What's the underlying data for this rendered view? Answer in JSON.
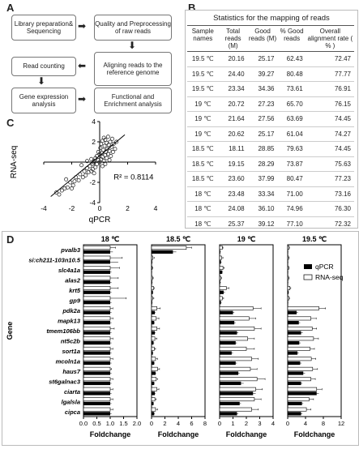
{
  "panels": {
    "a": "A",
    "b": "B",
    "c": "C",
    "d": "D"
  },
  "flow": {
    "library": "Library preparation& Sequencing",
    "quality": "Quality and Preprocessing of raw reads",
    "aligning": "Aligning reads to the reference genome",
    "counting": "Read counting",
    "expression": "Gene expression analysis",
    "functional": "Functional and Enrichment analysis"
  },
  "table": {
    "title": "Statistics for the mapping of reads",
    "headers": [
      "Sample names",
      "Total reads (M)",
      "Good reads (M)",
      "% Good reads",
      "Overall alignment rate ( % )"
    ],
    "rows": [
      [
        "19.5 ℃",
        "20.16",
        "25.17",
        "62.43",
        "72.47"
      ],
      [
        "19.5 ℃",
        "24.40",
        "39.27",
        "80.48",
        "77.77"
      ],
      [
        "19.5 ℃",
        "23.34",
        "34.36",
        "73.61",
        "76.91"
      ],
      [
        "19 ℃",
        "20.72",
        "27.23",
        "65.70",
        "76.15"
      ],
      [
        "19 ℃",
        "21.64",
        "27.56",
        "63.69",
        "74.45"
      ],
      [
        "19 ℃",
        "20.62",
        "25.17",
        "61.04",
        "74.27"
      ],
      [
        "18.5 ℃",
        "18.11",
        "28.85",
        "79.63",
        "74.45"
      ],
      [
        "18.5 ℃",
        "19.15",
        "28.29",
        "73.87",
        "75.63"
      ],
      [
        "18.5 ℃",
        "23.60",
        "37.99",
        "80.47",
        "77.23"
      ],
      [
        "18 ℃",
        "23.48",
        "33.34",
        "71.00",
        "73.16"
      ],
      [
        "18 ℃",
        "24.08",
        "36.10",
        "74.96",
        "76.30"
      ],
      [
        "18 ℃",
        "25.37",
        "39.12",
        "77.10",
        "72.32"
      ]
    ]
  },
  "chart_data": [
    {
      "type": "scatter",
      "xlabel": "qPCR",
      "ylabel": "RNA-seq",
      "annotation": "R² = 0.8114",
      "xlim": [
        -4,
        4
      ],
      "ylim": [
        -4,
        4
      ],
      "xticks": [
        "-4",
        "-2",
        "0",
        "2",
        "4"
      ],
      "yticks": [
        "-4",
        "-2",
        "0",
        "2",
        "4"
      ],
      "points": [
        [
          -3.1,
          -3.0
        ],
        [
          -2.9,
          -3.2
        ],
        [
          -2.7,
          -2.8
        ],
        [
          -2.5,
          -2.6
        ],
        [
          -2.3,
          -2.5
        ],
        [
          -2.1,
          -2.0
        ],
        [
          -2.0,
          -2.6
        ],
        [
          -1.8,
          -1.9
        ],
        [
          -1.7,
          -1.5
        ],
        [
          -1.5,
          -1.8
        ],
        [
          -1.4,
          -1.2
        ],
        [
          -1.2,
          -1.5
        ],
        [
          -1.1,
          -0.9
        ],
        [
          -1.0,
          -1.3
        ],
        [
          -0.9,
          -0.6
        ],
        [
          -0.8,
          -1.0
        ],
        [
          -0.7,
          -0.4
        ],
        [
          -0.6,
          -0.9
        ],
        [
          -0.5,
          -0.2
        ],
        [
          -0.5,
          -0.7
        ],
        [
          -0.4,
          0.1
        ],
        [
          -0.3,
          -0.5
        ],
        [
          -0.3,
          0.4
        ],
        [
          -0.2,
          -0.2
        ],
        [
          -0.2,
          0.6
        ],
        [
          -0.1,
          0.2
        ],
        [
          -0.1,
          1.0
        ],
        [
          0.0,
          0.0
        ],
        [
          0.0,
          0.8
        ],
        [
          0.05,
          1.4
        ],
        [
          0.1,
          0.3
        ],
        [
          0.1,
          1.8
        ],
        [
          0.15,
          0.9
        ],
        [
          0.2,
          2.1
        ],
        [
          0.2,
          0.5
        ],
        [
          0.25,
          1.2
        ],
        [
          0.3,
          2.4
        ],
        [
          0.3,
          0.1
        ],
        [
          0.35,
          1.6
        ],
        [
          0.4,
          0.7
        ],
        [
          0.4,
          2.2
        ],
        [
          0.45,
          1.0
        ],
        [
          0.5,
          1.9
        ],
        [
          0.5,
          0.4
        ],
        [
          0.55,
          1.3
        ],
        [
          0.6,
          2.5
        ],
        [
          0.6,
          0.8
        ],
        [
          0.65,
          1.7
        ],
        [
          0.7,
          1.1
        ],
        [
          0.75,
          2.0
        ],
        [
          0.8,
          0.6
        ],
        [
          0.85,
          1.5
        ],
        [
          0.9,
          2.3
        ],
        [
          0.95,
          1.0
        ],
        [
          1.0,
          1.8
        ],
        [
          1.1,
          1.3
        ],
        [
          1.2,
          2.0
        ],
        [
          -0.6,
          0.3
        ],
        [
          -0.9,
          0.1
        ],
        [
          -1.3,
          -0.3
        ],
        [
          -2.4,
          -1.7
        ],
        [
          0.2,
          -0.4
        ],
        [
          0.4,
          -0.2
        ],
        [
          -0.4,
          -1.1
        ],
        [
          0.7,
          0.2
        ],
        [
          -1.9,
          -2.3
        ]
      ],
      "fit": {
        "x": [
          -3.5,
          1.8
        ],
        "y": [
          -3.4,
          2.7
        ]
      }
    },
    {
      "type": "bar",
      "ylabel": "Gene",
      "xlabel": "Foldchange",
      "legend": [
        "qPCR",
        "RNA-seq"
      ],
      "legend_position": "top-right",
      "categories": [
        "pvalb3",
        "si:ch211-103n10.5",
        "slc4a1a",
        "alas2",
        "krt5",
        "gp9",
        "pdk2a",
        "mapk13",
        "tmem106bb",
        "nt5c2b",
        "sort1a",
        "mcoln1a",
        "haus7",
        "st6galnac3",
        "ciarta",
        "lgalsla",
        "cipca"
      ],
      "facets": [
        {
          "title": "18 ℃",
          "xmax": 2.0,
          "xticks": [
            "0.0",
            "0.5",
            "1.0",
            "1.5",
            "2.0"
          ],
          "qpcr": [
            1,
            1,
            1,
            1,
            1,
            1,
            1,
            1,
            1,
            1,
            1,
            1,
            1,
            1,
            1,
            1,
            1
          ],
          "rnaseq": [
            1,
            1,
            1,
            1,
            1,
            1,
            1,
            1,
            1,
            1,
            1,
            1,
            1,
            1,
            1,
            1,
            1
          ],
          "qpcr_err": [
            0.1,
            0.3,
            0.05,
            0.05,
            0.05,
            0.05,
            0.05,
            0.05,
            0.05,
            0.05,
            0.05,
            0.05,
            0.05,
            0.05,
            0.05,
            0.05,
            0.05
          ],
          "rnaseq_err": [
            0.2,
            0.45,
            0.35,
            0.3,
            0.3,
            0.6,
            0.1,
            0.1,
            0.15,
            0.1,
            0.1,
            0.1,
            0.05,
            0.1,
            0.1,
            0.1,
            0.1
          ]
        },
        {
          "title": "18.5 ℃",
          "xmax": 8,
          "xticks": [
            "0",
            "2",
            "4",
            "6",
            "8"
          ],
          "qpcr": [
            3.2,
            0.1,
            0.05,
            0.1,
            0.2,
            0.1,
            0.5,
            0.4,
            0.5,
            0.3,
            0.2,
            0.4,
            0.6,
            0.4,
            0.5,
            0.3,
            0.4
          ],
          "rnaseq": [
            5.2,
            0.2,
            0.1,
            0.15,
            0.3,
            0.15,
            0.8,
            0.7,
            0.8,
            0.5,
            0.4,
            0.6,
            0.9,
            0.7,
            0.8,
            0.5,
            0.6
          ],
          "qpcr_err": [
            0.5,
            0.05,
            0.05,
            0.05,
            0.05,
            0.05,
            0.1,
            0.1,
            0.1,
            0.1,
            0.05,
            0.1,
            0.1,
            0.1,
            0.1,
            0.05,
            0.1
          ],
          "rnaseq_err": [
            0.8,
            0.2,
            0.1,
            0.1,
            0.1,
            0.2,
            0.5,
            0.4,
            0.4,
            0.3,
            0.2,
            0.3,
            0.3,
            0.2,
            0.3,
            0.2,
            0.3
          ]
        },
        {
          "title": "19 ℃",
          "xmax": 4,
          "xticks": [
            "0",
            "1",
            "2",
            "3",
            "4"
          ],
          "qpcr": [
            0.05,
            0.1,
            0.2,
            0.05,
            0.3,
            0.1,
            1.0,
            1.1,
            1.3,
            1.2,
            0.9,
            1.2,
            1.4,
            1.6,
            2.5,
            1.5,
            1.3
          ],
          "rnaseq": [
            0.2,
            0.15,
            0.25,
            0.1,
            0.5,
            0.2,
            2.5,
            2.2,
            2.6,
            2.1,
            2.0,
            2.4,
            2.3,
            2.8,
            2.7,
            2.6,
            2.4
          ],
          "qpcr_err": [
            0.05,
            0.05,
            0.05,
            0.05,
            0.1,
            0.05,
            0.1,
            0.1,
            0.1,
            0.1,
            0.1,
            0.1,
            0.1,
            0.2,
            0.2,
            0.1,
            0.1
          ],
          "rnaseq_err": [
            0.05,
            0.1,
            0.1,
            0.05,
            0.2,
            0.1,
            0.6,
            0.5,
            0.5,
            0.5,
            0.6,
            0.5,
            0.5,
            0.6,
            0.5,
            0.5,
            0.5
          ]
        },
        {
          "title": "19.5 ℃",
          "xmax": 12,
          "xticks": [
            "0",
            "4",
            "8",
            "12"
          ],
          "qpcr": [
            0.1,
            0.1,
            0.1,
            0.1,
            0.2,
            0.1,
            2.0,
            2.5,
            3.0,
            2.6,
            2.2,
            2.8,
            3.5,
            3.0,
            6.5,
            3.2,
            3.0
          ],
          "rnaseq": [
            0.3,
            0.2,
            0.2,
            0.2,
            0.5,
            0.3,
            7.0,
            5.2,
            5.5,
            5.8,
            5.0,
            5.3,
            5.6,
            5.2,
            6.5,
            4.8,
            4.2
          ],
          "qpcr_err": [
            0.05,
            0.05,
            0.05,
            0.05,
            0.1,
            0.05,
            0.3,
            0.3,
            0.4,
            0.3,
            0.3,
            0.3,
            0.4,
            0.3,
            0.5,
            0.3,
            0.3
          ],
          "rnaseq_err": [
            0.1,
            0.1,
            0.1,
            0.1,
            0.2,
            0.1,
            1.5,
            1.2,
            1.0,
            1.1,
            1.0,
            1.0,
            1.1,
            1.0,
            1.2,
            1.0,
            1.0
          ]
        }
      ]
    }
  ]
}
